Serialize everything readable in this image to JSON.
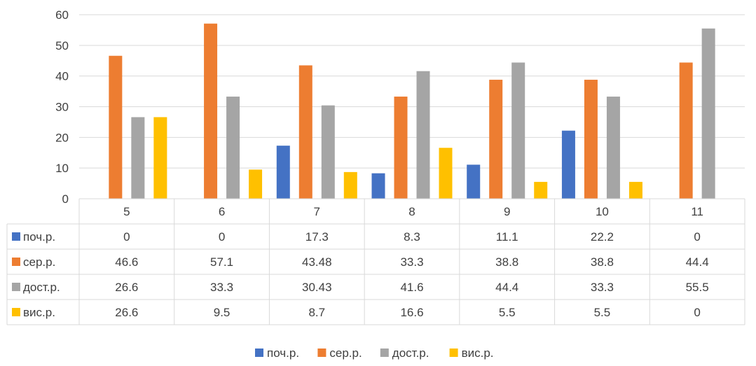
{
  "chart_data": {
    "type": "bar",
    "title": "",
    "xlabel": "",
    "ylabel": "",
    "ylim": [
      0,
      60
    ],
    "yticks": [
      0,
      10,
      20,
      30,
      40,
      50,
      60
    ],
    "grid": true,
    "legend_position": "bottom",
    "data_table": true,
    "categories": [
      "5",
      "6",
      "7",
      "8",
      "9",
      "10",
      "11"
    ],
    "series": [
      {
        "name": "поч.р.",
        "color": "#4472C4",
        "values": [
          0,
          0,
          17.3,
          8.3,
          11.1,
          22.2,
          0
        ],
        "labels": [
          "0",
          "0",
          "17.3",
          "8.3",
          "11.1",
          "22.2",
          "0"
        ]
      },
      {
        "name": "сер.р.",
        "color": "#ED7D31",
        "values": [
          46.6,
          57.1,
          43.48,
          33.3,
          38.8,
          38.8,
          44.4
        ],
        "labels": [
          "46.6",
          "57.1",
          "43.48",
          "33.3",
          "38.8",
          "38.8",
          "44.4"
        ]
      },
      {
        "name": "дост.р.",
        "color": "#A5A5A5",
        "values": [
          26.6,
          33.3,
          30.43,
          41.6,
          44.4,
          33.3,
          55.5
        ],
        "labels": [
          "26.6",
          "33.3",
          "30.43",
          "41.6",
          "44.4",
          "33.3",
          "55.5"
        ]
      },
      {
        "name": "вис.р.",
        "color": "#FFC000",
        "values": [
          26.6,
          9.5,
          8.7,
          16.6,
          5.5,
          5.5,
          0
        ],
        "labels": [
          "26.6",
          "9.5",
          "8.7",
          "16.6",
          "5.5",
          "5.5",
          "0"
        ]
      }
    ]
  }
}
